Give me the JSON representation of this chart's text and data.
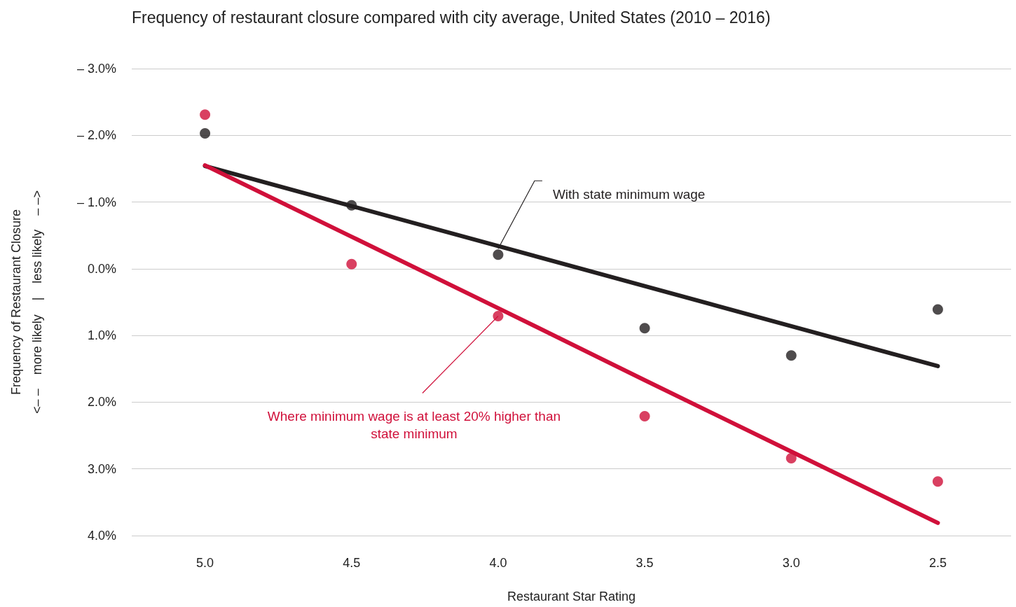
{
  "chart_data": {
    "type": "scatter",
    "title": "Frequency of restaurant closure compared with city average, United States (2010 – 2016)",
    "xlabel": "Restaurant Star Rating",
    "ylabel": "Frequency of Restaurant Closure\n<– –    more likely    |    less likely    – –>",
    "categories": [
      "5.0",
      "4.5",
      "4.0",
      "3.5",
      "3.0",
      "2.5"
    ],
    "series": [
      {
        "type": "scatter",
        "color": "#231f20",
        "values": [
          -2.03,
          -0.95,
          -0.21,
          0.89,
          1.3,
          0.61
        ]
      },
      {
        "type": "scatter",
        "color": "#d0103a",
        "values": [
          -2.31,
          -0.07,
          0.71,
          2.21,
          2.84,
          3.19
        ]
      },
      {
        "type": "line",
        "marker": "none",
        "color": "#231f20",
        "values": [
          -1.54,
          -0.94,
          -0.34,
          0.26,
          0.86,
          1.46
        ]
      },
      {
        "type": "line",
        "marker": "none",
        "color": "#d0103a",
        "values": [
          -1.55,
          -0.48,
          0.59,
          1.67,
          2.74,
          3.81
        ]
      }
    ],
    "ylim": [
      4,
      -3
    ],
    "yticks": [
      {
        "value": -3,
        "label": "– 3.0%"
      },
      {
        "value": -2,
        "label": "– 2.0%"
      },
      {
        "value": -1,
        "label": "– 1.0%"
      },
      {
        "value": 0,
        "label": "0.0%"
      },
      {
        "value": 1,
        "label": "1.0%"
      },
      {
        "value": 2,
        "label": "2.0%"
      },
      {
        "value": 3,
        "label": "3.0%"
      },
      {
        "value": 4,
        "label": "4.0%"
      }
    ],
    "grid": "y",
    "marker": "circle",
    "annotations": [
      {
        "text": "With state minimum wage",
        "x": "4.0",
        "y": -0.3
      },
      {
        "text": "Where minimum wage is at least 20% higher than\nstate minimum",
        "x": "4.0",
        "y": 0.71
      }
    ]
  }
}
